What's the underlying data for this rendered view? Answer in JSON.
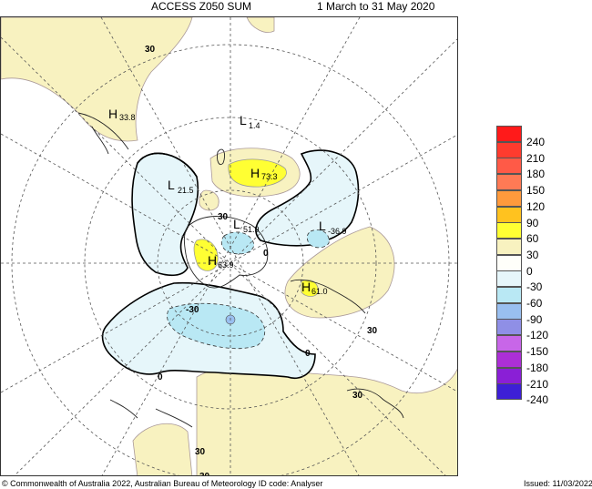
{
  "header": {
    "title_left": "ACCESS Z050 SUM",
    "title_right": "1 March to 31 May 2020"
  },
  "map": {
    "contour_labels": [
      "30",
      "30",
      "0",
      "0",
      "0",
      "30",
      "30",
      "-30",
      "30",
      "30"
    ],
    "centers": [
      {
        "symbol": "H",
        "value": "33.8"
      },
      {
        "symbol": "L",
        "value": "1.4"
      },
      {
        "symbol": "H",
        "value": "73.3"
      },
      {
        "symbol": "L",
        "value": "21.5"
      },
      {
        "symbol": "L",
        "value": "51.9"
      },
      {
        "symbol": "L",
        "value": "-36.9"
      },
      {
        "symbol": "H",
        "value": "63.9"
      },
      {
        "symbol": "H",
        "value": "61.0"
      }
    ]
  },
  "legend": {
    "items": [
      {
        "label": "240",
        "color": "#ff1a1a"
      },
      {
        "label": "210",
        "color": "#ff3b2e"
      },
      {
        "label": "180",
        "color": "#ff5a47"
      },
      {
        "label": "150",
        "color": "#ff7a55"
      },
      {
        "label": "120",
        "color": "#ff9a3c"
      },
      {
        "label": "90",
        "color": "#ffc21f"
      },
      {
        "label": "60",
        "color": "#ffff33"
      },
      {
        "label": "30",
        "color": "#f8f2c0"
      },
      {
        "label": "0",
        "color": "#fffffa"
      },
      {
        "label": "-30",
        "color": "#e6f6fa"
      },
      {
        "label": "-60",
        "color": "#b9e8f4"
      },
      {
        "label": "-90",
        "color": "#99bff0"
      },
      {
        "label": "-120",
        "color": "#8f8fe6"
      },
      {
        "label": "-150",
        "color": "#c866e8"
      },
      {
        "label": "-180",
        "color": "#ac2fd6"
      },
      {
        "label": "-210",
        "color": "#8a1fd6"
      },
      {
        "label": "-240",
        "color": "#3d1fd6"
      }
    ],
    "extra_label": ""
  },
  "footer": {
    "left": "© Commonwealth of Australia 2022, Australian Bureau of Meteorology     ID code: Analyser",
    "right": "Issued: 11/03/2022"
  }
}
